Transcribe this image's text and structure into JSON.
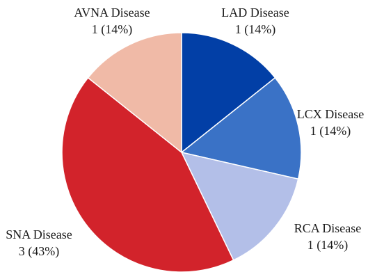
{
  "chart_data": {
    "type": "pie",
    "title": "",
    "slices": [
      {
        "name": "LAD Disease",
        "value": 1,
        "label": "LAD Disease",
        "value_label": "1 (14%)",
        "color": "#023fa6"
      },
      {
        "name": "LCX Disease",
        "value": 1,
        "label": "LCX Disease",
        "value_label": "1 (14%)",
        "color": "#3a72c6"
      },
      {
        "name": "RCA Disease",
        "value": 1,
        "label": "RCA Disease",
        "value_label": "1 (14%)",
        "color": "#b3bfe8"
      },
      {
        "name": "SNA Disease",
        "value": 3,
        "label": "SNA Disease",
        "value_label": "3 (43%)",
        "color": "#d2232b"
      },
      {
        "name": "AVNA Disease",
        "value": 1,
        "label": "AVNA Disease",
        "value_label": "1 (14%)",
        "color": "#f0baa7"
      }
    ],
    "start": "12 o'clock",
    "direction": "clockwise",
    "legend": "none"
  }
}
